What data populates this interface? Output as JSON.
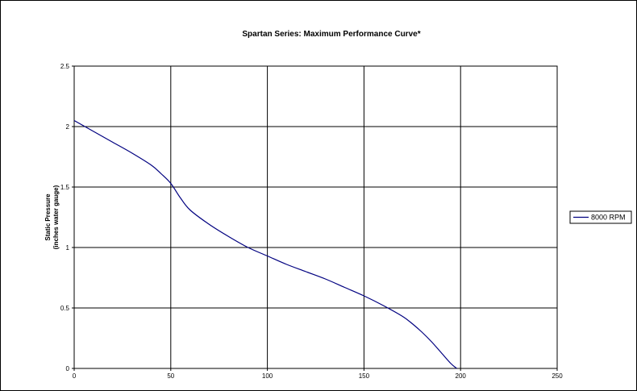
{
  "chart_data": {
    "type": "line",
    "title": "Spartan Series: Maximum Performance Curve*",
    "xlabel": "",
    "ylabel_lines": [
      "Static Pressure",
      "(inches water gauge)"
    ],
    "xlim": [
      0,
      250
    ],
    "ylim": [
      0,
      2.5
    ],
    "x_ticks": [
      0,
      50,
      100,
      150,
      200,
      250
    ],
    "y_ticks": [
      0,
      0.5,
      1,
      1.5,
      2,
      2.5
    ],
    "x_tick_labels": [
      "0",
      "50",
      "100",
      "150",
      "200",
      "250"
    ],
    "y_tick_labels": [
      "0",
      "0.5",
      "1",
      "1.5",
      "2",
      "2.5"
    ],
    "grid": true,
    "legend_position": "right",
    "series": [
      {
        "name": "8000 RPM",
        "color": "#000080",
        "x": [
          0,
          10,
          20,
          30,
          40,
          45,
          50,
          55,
          60,
          70,
          80,
          90,
          100,
          110,
          120,
          130,
          140,
          150,
          160,
          170,
          175,
          180,
          185,
          190,
          195,
          198
        ],
        "y": [
          2.05,
          1.96,
          1.87,
          1.78,
          1.68,
          1.61,
          1.53,
          1.41,
          1.31,
          1.19,
          1.09,
          1.0,
          0.93,
          0.86,
          0.8,
          0.74,
          0.67,
          0.6,
          0.52,
          0.43,
          0.37,
          0.3,
          0.22,
          0.13,
          0.04,
          0.0
        ]
      }
    ]
  }
}
